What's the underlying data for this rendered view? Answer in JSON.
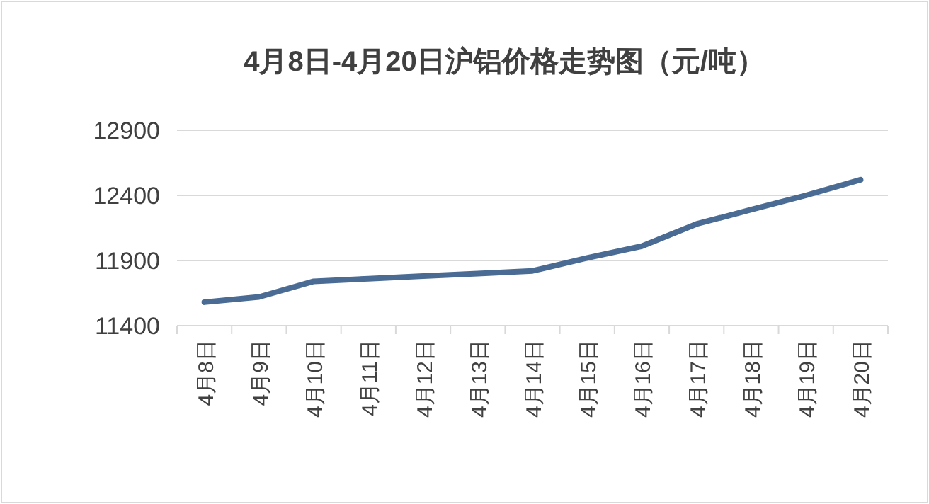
{
  "chart_data": {
    "type": "line",
    "title": "4月8日-4月20日沪铝价格走势图（元/吨）",
    "categories": [
      "4月8日",
      "4月9日",
      "4月10日",
      "4月11日",
      "4月12日",
      "4月13日",
      "4月14日",
      "4月15日",
      "4月16日",
      "4月17日",
      "4月18日",
      "4月19日",
      "4月20日"
    ],
    "series": [
      {
        "color": "#4a6b94",
        "values": [
          11580,
          11620,
          11740,
          11760,
          11780,
          11800,
          11820,
          11920,
          12010,
          12180,
          12290,
          12400,
          12520
        ]
      }
    ],
    "ylim": [
      11400,
      12900
    ],
    "yticks": [
      11400,
      11900,
      12400,
      12900
    ],
    "grid": "y",
    "marker": "none",
    "line_style": "solid"
  }
}
